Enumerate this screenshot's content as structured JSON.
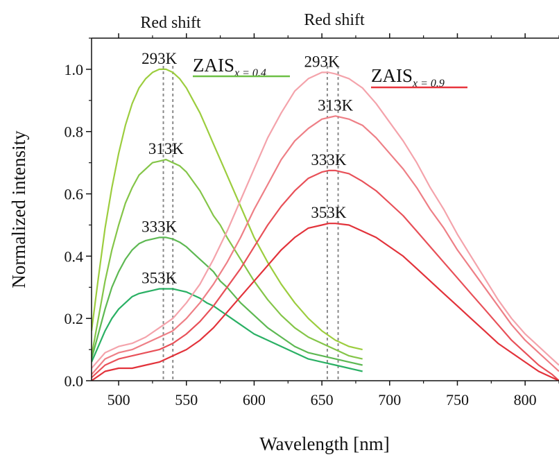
{
  "chart_data": {
    "type": "line",
    "xlabel": "Wavelength [nm]",
    "ylabel": "Normalized intensity",
    "xlim": [
      480,
      825
    ],
    "ylim": [
      0,
      1.1
    ],
    "x_ticks": [
      "500",
      "550",
      "600",
      "650",
      "700",
      "750",
      "800"
    ],
    "y_ticks": [
      "0.0",
      "0.2",
      "0.4",
      "0.6",
      "0.8",
      "1.0"
    ],
    "annotations": [
      "Red shift",
      "Red shift"
    ],
    "reference_lines_x": [
      533,
      540,
      654,
      662
    ],
    "groups": [
      {
        "name_main": "ZAIS",
        "name_sub": "x = 0.4",
        "color": "#6cbf45",
        "series": [
          {
            "label": "293K",
            "color": "#9ccd3e",
            "x": [
              480,
              485,
              490,
              495,
              500,
              505,
              510,
              515,
              520,
              525,
              530,
              535,
              540,
              545,
              550,
              555,
              560,
              565,
              570,
              575,
              580,
              590,
              600,
              610,
              620,
              630,
              640,
              650,
              660,
              670,
              680
            ],
            "y": [
              0.16,
              0.33,
              0.49,
              0.62,
              0.73,
              0.82,
              0.89,
              0.94,
              0.97,
              0.99,
              1.0,
              1.0,
              0.99,
              0.97,
              0.94,
              0.9,
              0.86,
              0.81,
              0.76,
              0.71,
              0.66,
              0.56,
              0.46,
              0.38,
              0.31,
              0.25,
              0.2,
              0.16,
              0.13,
              0.11,
              0.1
            ]
          },
          {
            "label": "313K",
            "color": "#84c548",
            "x": [
              480,
              485,
              490,
              495,
              500,
              505,
              510,
              515,
              520,
              525,
              530,
              535,
              540,
              545,
              550,
              555,
              560,
              565,
              570,
              575,
              580,
              590,
              600,
              610,
              620,
              630,
              640,
              650,
              660,
              670,
              680
            ],
            "y": [
              0.08,
              0.2,
              0.32,
              0.42,
              0.5,
              0.57,
              0.62,
              0.66,
              0.68,
              0.7,
              0.705,
              0.71,
              0.7,
              0.69,
              0.67,
              0.64,
              0.61,
              0.57,
              0.53,
              0.5,
              0.46,
              0.39,
              0.32,
              0.26,
              0.21,
              0.17,
              0.14,
              0.12,
              0.1,
              0.08,
              0.07
            ]
          },
          {
            "label": "333K",
            "color": "#5db852",
            "x": [
              480,
              485,
              490,
              495,
              500,
              505,
              510,
              515,
              520,
              525,
              530,
              535,
              540,
              545,
              550,
              555,
              560,
              565,
              570,
              575,
              580,
              590,
              600,
              610,
              620,
              630,
              640,
              650,
              660,
              670,
              680
            ],
            "y": [
              0.07,
              0.15,
              0.23,
              0.3,
              0.35,
              0.39,
              0.42,
              0.44,
              0.45,
              0.455,
              0.46,
              0.46,
              0.455,
              0.445,
              0.43,
              0.41,
              0.39,
              0.37,
              0.35,
              0.32,
              0.3,
              0.25,
              0.21,
              0.17,
              0.14,
              0.11,
              0.09,
              0.08,
              0.07,
              0.06,
              0.05
            ]
          },
          {
            "label": "353K",
            "color": "#2ab064",
            "x": [
              480,
              485,
              490,
              495,
              500,
              505,
              510,
              515,
              520,
              525,
              530,
              535,
              540,
              545,
              550,
              555,
              560,
              565,
              570,
              575,
              580,
              590,
              600,
              610,
              620,
              630,
              640,
              650,
              660,
              670,
              680
            ],
            "y": [
              0.06,
              0.11,
              0.16,
              0.2,
              0.23,
              0.25,
              0.27,
              0.28,
              0.285,
              0.29,
              0.295,
              0.295,
              0.295,
              0.29,
              0.285,
              0.275,
              0.265,
              0.25,
              0.24,
              0.225,
              0.21,
              0.18,
              0.15,
              0.13,
              0.11,
              0.09,
              0.07,
              0.06,
              0.05,
              0.04,
              0.03
            ]
          }
        ]
      },
      {
        "name_main": "ZAIS",
        "name_sub": "x = 0.9",
        "color": "#e8343c",
        "series": [
          {
            "label": "293K",
            "color": "#f4a3ab",
            "x": [
              480,
              490,
              500,
              510,
              520,
              530,
              540,
              550,
              560,
              570,
              580,
              590,
              600,
              610,
              620,
              630,
              640,
              650,
              655,
              660,
              670,
              680,
              690,
              700,
              710,
              720,
              730,
              740,
              750,
              760,
              770,
              780,
              790,
              800,
              810,
              820,
              825
            ],
            "y": [
              0.04,
              0.09,
              0.11,
              0.12,
              0.14,
              0.17,
              0.2,
              0.25,
              0.31,
              0.39,
              0.48,
              0.58,
              0.68,
              0.78,
              0.86,
              0.93,
              0.97,
              0.99,
              0.99,
              0.985,
              0.97,
              0.94,
              0.89,
              0.83,
              0.77,
              0.7,
              0.62,
              0.55,
              0.47,
              0.4,
              0.33,
              0.26,
              0.2,
              0.15,
              0.11,
              0.07,
              0.05
            ]
          },
          {
            "label": "313K",
            "color": "#ee7f86",
            "x": [
              480,
              490,
              500,
              510,
              520,
              530,
              540,
              550,
              560,
              570,
              580,
              590,
              600,
              610,
              620,
              630,
              640,
              650,
              655,
              660,
              670,
              680,
              690,
              700,
              710,
              720,
              730,
              740,
              750,
              760,
              770,
              780,
              790,
              800,
              810,
              820,
              825
            ],
            "y": [
              0.02,
              0.07,
              0.09,
              0.1,
              0.12,
              0.14,
              0.16,
              0.2,
              0.25,
              0.31,
              0.38,
              0.46,
              0.55,
              0.63,
              0.71,
              0.77,
              0.81,
              0.84,
              0.845,
              0.85,
              0.84,
              0.82,
              0.78,
              0.73,
              0.68,
              0.62,
              0.55,
              0.49,
              0.42,
              0.36,
              0.3,
              0.24,
              0.18,
              0.13,
              0.09,
              0.05,
              0.03
            ]
          },
          {
            "label": "333K",
            "color": "#e85058",
            "x": [
              480,
              490,
              500,
              510,
              520,
              530,
              540,
              550,
              560,
              570,
              580,
              590,
              600,
              610,
              620,
              630,
              640,
              650,
              655,
              660,
              670,
              680,
              690,
              700,
              710,
              720,
              730,
              740,
              750,
              760,
              770,
              780,
              790,
              800,
              810,
              820,
              825
            ],
            "y": [
              0.01,
              0.05,
              0.07,
              0.08,
              0.09,
              0.1,
              0.12,
              0.15,
              0.19,
              0.24,
              0.3,
              0.36,
              0.43,
              0.5,
              0.56,
              0.61,
              0.65,
              0.67,
              0.675,
              0.675,
              0.665,
              0.64,
              0.61,
              0.57,
              0.53,
              0.48,
              0.43,
              0.38,
              0.33,
              0.28,
              0.23,
              0.18,
              0.13,
              0.09,
              0.05,
              0.02,
              0.0
            ]
          },
          {
            "label": "353K",
            "color": "#e2323a",
            "x": [
              480,
              490,
              500,
              510,
              520,
              530,
              540,
              550,
              560,
              570,
              580,
              590,
              600,
              610,
              620,
              630,
              640,
              650,
              655,
              660,
              670,
              680,
              690,
              700,
              710,
              720,
              730,
              740,
              750,
              760,
              770,
              780,
              790,
              800,
              810,
              820,
              825
            ],
            "y": [
              0.0,
              0.03,
              0.04,
              0.04,
              0.05,
              0.06,
              0.08,
              0.1,
              0.13,
              0.17,
              0.22,
              0.27,
              0.32,
              0.37,
              0.42,
              0.46,
              0.49,
              0.5,
              0.505,
              0.505,
              0.5,
              0.48,
              0.46,
              0.43,
              0.4,
              0.36,
              0.32,
              0.28,
              0.24,
              0.2,
              0.16,
              0.12,
              0.09,
              0.06,
              0.03,
              0.01,
              0.0
            ]
          }
        ]
      }
    ]
  }
}
